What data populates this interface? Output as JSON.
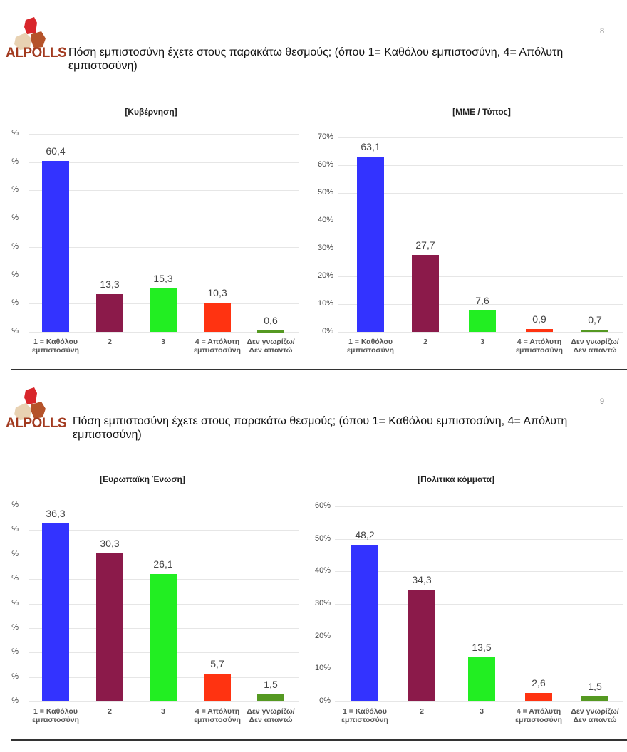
{
  "pages": [
    {
      "page_number": "8",
      "logo_text": "ALPOLLS",
      "question": "Πόση εμπιστοσύνη έχετε στους παρακάτω θεσμούς; (όπου 1= Καθόλου εμπιστοσύνη, 4= Απόλυτη εμπιστοσύνη)"
    },
    {
      "page_number": "9",
      "logo_text": "ALPOLLS",
      "question": "Πόση εμπιστοσύνη έχετε στους παρακάτω θεσμούς; (όπου 1= Καθόλου εμπιστοσύνη, 4= Απόλυτη εμπιστοσύνη)"
    }
  ],
  "chart_data": [
    {
      "type": "bar",
      "title": "[Κυβέρνηση]",
      "categories": [
        "1 = Καθόλου εμπιστοσύνη",
        "2",
        "3",
        "4 = Απόλυτη εμπιστοσύνη",
        "Δεν γνωρίζω/Δεν απαντώ"
      ],
      "values": [
        60.4,
        13.3,
        15.3,
        10.3,
        0.6
      ],
      "data_labels": [
        "60,4",
        "13,3",
        "15,3",
        "10,3",
        "0,6"
      ],
      "colors": [
        "#3333ff",
        "#8b1a4a",
        "#22ee22",
        "#ff3311",
        "#559922"
      ],
      "ylim": [
        0,
        70
      ],
      "ytick_labels": [
        "%",
        "%",
        "%",
        "%",
        "%",
        "%",
        "%",
        "%"
      ],
      "grid": true
    },
    {
      "type": "bar",
      "title": "[ΜΜΕ / Τύπος]",
      "categories": [
        "1 = Καθόλου εμπιστοσύνη",
        "2",
        "3",
        "4 = Απόλυτη εμπιστοσύνη",
        "Δεν γνωρίζω/Δεν απαντώ"
      ],
      "values": [
        63.1,
        27.7,
        7.6,
        0.9,
        0.7
      ],
      "data_labels": [
        "63,1",
        "27,7",
        "7,6",
        "0,9",
        "0,7"
      ],
      "colors": [
        "#3333ff",
        "#8b1a4a",
        "#22ee22",
        "#ff3311",
        "#559922"
      ],
      "ylim": [
        0,
        70
      ],
      "ytick_labels": [
        "0%",
        "10%",
        "20%",
        "30%",
        "40%",
        "50%",
        "60%",
        "70%"
      ],
      "grid": true
    },
    {
      "type": "bar",
      "title": "[Ευρωπαϊκή Ένωση]",
      "categories": [
        "1 = Καθόλου εμπιστοσύνη",
        "2",
        "3",
        "4 = Απόλυτη εμπιστοσύνη",
        "Δεν γνωρίζω/Δεν απαντώ"
      ],
      "values": [
        36.3,
        30.3,
        26.1,
        5.7,
        1.5
      ],
      "data_labels": [
        "36,3",
        "30,3",
        "26,1",
        "5,7",
        "1,5"
      ],
      "colors": [
        "#3333ff",
        "#8b1a4a",
        "#22ee22",
        "#ff3311",
        "#559922"
      ],
      "ylim": [
        0,
        40
      ],
      "ytick_labels": [
        "%",
        "%",
        "%",
        "%",
        "%",
        "%",
        "%",
        "%",
        "%"
      ],
      "grid": true
    },
    {
      "type": "bar",
      "title": "[Πολιτικά κόμματα]",
      "categories": [
        "1 = Καθόλου εμπιστοσύνη",
        "2",
        "3",
        "4 = Απόλυτη εμπιστοσύνη",
        "Δεν γνωρίζω/Δεν απαντώ"
      ],
      "values": [
        48.2,
        34.3,
        13.5,
        2.6,
        1.5
      ],
      "data_labels": [
        "48,2",
        "34,3",
        "13,5",
        "2,6",
        "1,5"
      ],
      "colors": [
        "#3333ff",
        "#8b1a4a",
        "#22ee22",
        "#ff3311",
        "#559922"
      ],
      "ylim": [
        0,
        60
      ],
      "ytick_labels": [
        "0%",
        "10%",
        "20%",
        "30%",
        "40%",
        "50%",
        "60%"
      ],
      "grid": true
    }
  ]
}
